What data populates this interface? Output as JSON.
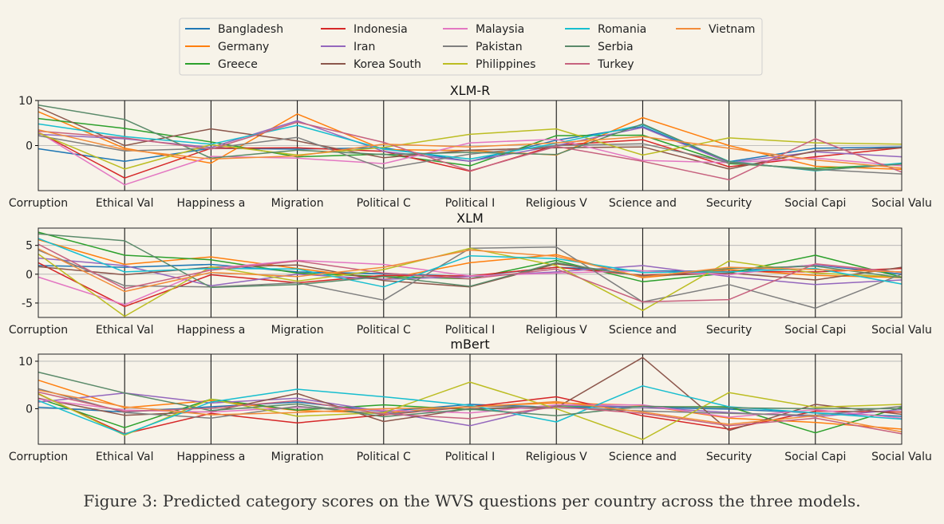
{
  "caption": "Figure 3: Predicted category scores on the WVS questions per country across the three models.",
  "chart_data": {
    "type": "line",
    "categories": [
      "Corruption",
      "Ethical Val",
      "Happiness a",
      "Migration",
      "Political C",
      "Political I",
      "Religious V",
      "Science and",
      "Security",
      "Social Capi",
      "Social Valu"
    ],
    "legend": {
      "placement": "top-center",
      "entries": [
        {
          "name": "Bangladesh",
          "color": "#1f77b4"
        },
        {
          "name": "Germany",
          "color": "#ff7f0e"
        },
        {
          "name": "Greece",
          "color": "#2ca02c"
        },
        {
          "name": "Indonesia",
          "color": "#d62728"
        },
        {
          "name": "Iran",
          "color": "#9467bd"
        },
        {
          "name": "Korea South",
          "color": "#8c564b"
        },
        {
          "name": "Malaysia",
          "color": "#e377c2"
        },
        {
          "name": "Pakistan",
          "color": "#7f7f7f"
        },
        {
          "name": "Philippines",
          "color": "#bcbd22"
        },
        {
          "name": "Romania",
          "color": "#17becf"
        },
        {
          "name": "Serbia",
          "color": "#5a8a6a"
        },
        {
          "name": "Turkey",
          "color": "#c7627f"
        },
        {
          "name": "Vietnam",
          "color": "#f28c3a"
        }
      ]
    },
    "panels": [
      {
        "title": "XLM-R",
        "ylim": [
          -10,
          10
        ],
        "yticks": [
          0,
          10
        ],
        "grid": "horizontal",
        "series": [
          {
            "name": "Bangladesh",
            "values": [
              -0.7,
              -3.5,
              -0.6,
              -0.8,
              -0.5,
              -3.5,
              1.2,
              4.2,
              -3.6,
              -0.6,
              -0.3
            ]
          },
          {
            "name": "Germany",
            "values": [
              7.5,
              -0.6,
              -3.9,
              7.0,
              -0.9,
              -1.1,
              -2.1,
              6.2,
              0.0,
              -4.6,
              -5.3
            ]
          },
          {
            "name": "Greece",
            "values": [
              6.0,
              3.8,
              0.8,
              -2.5,
              -1.9,
              -4.5,
              2.2,
              2.3,
              -4.0,
              -5.1,
              -4.1
            ]
          },
          {
            "name": "Indonesia",
            "values": [
              3.0,
              -7.2,
              -0.6,
              -0.5,
              -1.3,
              -5.7,
              0.1,
              1.3,
              -4.7,
              -2.5,
              -0.5
            ]
          },
          {
            "name": "Iran",
            "values": [
              2.5,
              1.5,
              -0.4,
              5.5,
              -1.3,
              -3.5,
              0.0,
              4.0,
              -3.8,
              -1.4,
              -2.5
            ]
          },
          {
            "name": "Korea South",
            "values": [
              8.5,
              0.0,
              3.7,
              1.0,
              -2.7,
              -1.0,
              -0.5,
              -0.3,
              -5.2,
              -1.2,
              -0.5
            ]
          },
          {
            "name": "Malaysia",
            "values": [
              3.0,
              -8.7,
              -2.4,
              -2.8,
              -4.0,
              0.6,
              1.4,
              -3.3,
              -3.8,
              -2.8,
              -4.5
            ]
          },
          {
            "name": "Pakistan",
            "values": [
              2.2,
              -1.2,
              -0.6,
              1.8,
              -5.1,
              -1.9,
              0.0,
              0.4,
              -3.8,
              -5.3,
              -6.3
            ]
          },
          {
            "name": "Philippines",
            "values": [
              2.8,
              -5.2,
              0.2,
              -2.1,
              -0.4,
              2.5,
              3.7,
              -2.1,
              1.7,
              0.6,
              0.3
            ]
          },
          {
            "name": "Romania",
            "values": [
              4.8,
              2.0,
              0.3,
              4.5,
              -0.8,
              -3.0,
              0.5,
              4.6,
              -3.5,
              -5.6,
              -3.9
            ]
          },
          {
            "name": "Serbia",
            "values": [
              9.0,
              5.8,
              -2.8,
              -1.0,
              -2.0,
              -1.5,
              -2.0,
              4.8,
              -3.6,
              -5.5,
              -4.1
            ]
          },
          {
            "name": "Turkey",
            "values": [
              3.2,
              1.7,
              -0.8,
              5.2,
              0.7,
              -5.6,
              -0.2,
              -3.5,
              -7.6,
              1.5,
              -5.9
            ]
          },
          {
            "name": "Vietnam",
            "values": [
              3.5,
              -0.9,
              -3.0,
              -2.3,
              0.3,
              -0.3,
              0.6,
              2.0,
              -0.6,
              -3.2,
              -5.0
            ]
          }
        ]
      },
      {
        "title": "XLM",
        "ylim": [
          -7.5,
          8
        ],
        "yticks": [
          -5,
          0,
          5
        ],
        "grid": "horizontal",
        "series": [
          {
            "name": "Bangladesh",
            "values": [
              1.5,
              1.2,
              1.7,
              0.4,
              0.1,
              -0.4,
              1.2,
              0.6,
              0.5,
              1.6,
              0.0
            ]
          },
          {
            "name": "Germany",
            "values": [
              6.0,
              1.7,
              3.0,
              1.0,
              -0.9,
              2.0,
              3.4,
              -0.6,
              0.8,
              -0.2,
              -0.6
            ]
          },
          {
            "name": "Greece",
            "values": [
              7.3,
              3.3,
              2.5,
              0.2,
              -0.4,
              -0.8,
              2.4,
              -1.3,
              0.2,
              3.3,
              -0.5
            ]
          },
          {
            "name": "Indonesia",
            "values": [
              2.0,
              -5.6,
              -0.1,
              -1.5,
              -0.2,
              -0.3,
              1.2,
              -0.2,
              0.5,
              0.4,
              1.0
            ]
          },
          {
            "name": "Iran",
            "values": [
              2.8,
              1.5,
              -2.0,
              0.0,
              -0.9,
              -0.4,
              0.4,
              1.5,
              -0.4,
              -1.8,
              -1.0
            ]
          },
          {
            "name": "Korea South",
            "values": [
              1.3,
              -0.1,
              1.2,
              1.6,
              -1.1,
              -2.2,
              1.8,
              -0.3,
              0.2,
              -1.0,
              1.2
            ]
          },
          {
            "name": "Malaysia",
            "values": [
              -0.5,
              -5.3,
              1.0,
              2.4,
              1.7,
              -0.3,
              0.2,
              0.6,
              -0.1,
              1.7,
              0.3
            ]
          },
          {
            "name": "Pakistan",
            "values": [
              4.2,
              -2.0,
              -2.2,
              -1.5,
              -4.5,
              4.5,
              4.7,
              -4.8,
              -1.8,
              -5.9,
              0.0
            ]
          },
          {
            "name": "Philippines",
            "values": [
              3.5,
              -7.3,
              1.3,
              -1.2,
              0.8,
              4.5,
              1.5,
              -6.3,
              2.3,
              0.2,
              -0.5
            ]
          },
          {
            "name": "Romania",
            "values": [
              6.2,
              0.4,
              1.0,
              0.9,
              -2.2,
              3.2,
              2.7,
              0.3,
              0.4,
              1.0,
              -1.7
            ]
          },
          {
            "name": "Serbia",
            "values": [
              7.0,
              5.8,
              -2.3,
              -1.8,
              -0.4,
              -2.1,
              2.0,
              -0.4,
              1.0,
              1.4,
              -0.6
            ]
          },
          {
            "name": "Turkey",
            "values": [
              5.2,
              -2.5,
              0.7,
              2.3,
              0.2,
              -0.8,
              0.9,
              -4.8,
              -4.4,
              1.8,
              0.3
            ]
          },
          {
            "name": "Vietnam",
            "values": [
              4.4,
              -3.0,
              0.3,
              -0.4,
              1.2,
              4.2,
              3.1,
              -0.5,
              1.2,
              0.8,
              0.4
            ]
          }
        ]
      },
      {
        "title": "mBert",
        "ylim": [
          -7.5,
          11.5
        ],
        "yticks": [
          0,
          10
        ],
        "grid": "horizontal",
        "series": [
          {
            "name": "Bangladesh",
            "values": [
              0.3,
              -0.7,
              0.4,
              1.4,
              -0.6,
              0.9,
              0.3,
              0.3,
              -0.1,
              -0.9,
              -1.6
            ]
          },
          {
            "name": "Germany",
            "values": [
              6.0,
              0.2,
              1.7,
              -0.4,
              -0.9,
              0.5,
              1.2,
              0.7,
              -2.0,
              -2.9,
              -4.3
            ]
          },
          {
            "name": "Greece",
            "values": [
              2.2,
              -4.0,
              2.0,
              -0.3,
              0.8,
              -0.2,
              0.6,
              0.4,
              0.4,
              -5.1,
              0.3
            ]
          },
          {
            "name": "Indonesia",
            "values": [
              3.1,
              -5.3,
              -1.0,
              -3.0,
              -1.3,
              0.4,
              2.5,
              -1.5,
              -4.3,
              -0.5,
              -0.7
            ]
          },
          {
            "name": "Iran",
            "values": [
              1.4,
              3.3,
              1.2,
              2.2,
              -0.6,
              -3.6,
              0.8,
              0.3,
              -0.8,
              -1.7,
              -0.2
            ]
          },
          {
            "name": "Korea South",
            "values": [
              2.2,
              -1.4,
              -0.6,
              3.2,
              -2.7,
              0.0,
              0.2,
              10.8,
              -4.6,
              0.9,
              -1.2
            ]
          },
          {
            "name": "Malaysia",
            "values": [
              2.0,
              -0.3,
              -0.7,
              0.3,
              -0.3,
              -0.9,
              0.8,
              0.8,
              -1.8,
              -0.2,
              -2.0
            ]
          },
          {
            "name": "Pakistan",
            "values": [
              4.2,
              -0.8,
              -2.0,
              0.5,
              -1.2,
              0.5,
              0.3,
              -0.5,
              -1.0,
              -1.4,
              0.5
            ]
          },
          {
            "name": "Philippines",
            "values": [
              3.2,
              -5.6,
              2.0,
              -1.6,
              -0.8,
              5.6,
              0.0,
              -6.5,
              3.4,
              0.3,
              0.9
            ]
          },
          {
            "name": "Romania",
            "values": [
              1.7,
              -5.4,
              1.4,
              4.1,
              2.5,
              0.7,
              -2.8,
              4.8,
              0.4,
              -0.9,
              -2.2
            ]
          },
          {
            "name": "Serbia",
            "values": [
              7.7,
              3.3,
              -0.4,
              1.0,
              -1.7,
              -0.1,
              -1.5,
              0.5,
              0.2,
              0.0,
              0.0
            ]
          },
          {
            "name": "Turkey",
            "values": [
              3.5,
              -0.6,
              0.1,
              1.7,
              -1.1,
              -2.1,
              0.4,
              -1.0,
              -3.6,
              -2.0,
              -5.3
            ]
          },
          {
            "name": "Vietnam",
            "values": [
              3.9,
              0.4,
              -1.3,
              -0.8,
              0.0,
              0.3,
              1.5,
              -0.7,
              -3.3,
              -1.5,
              -4.9
            ]
          }
        ]
      }
    ]
  }
}
